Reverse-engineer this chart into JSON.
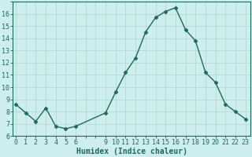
{
  "x": [
    0,
    1,
    2,
    3,
    4,
    5,
    6,
    9,
    10,
    11,
    12,
    13,
    14,
    15,
    16,
    17,
    18,
    19,
    20,
    21,
    22,
    23
  ],
  "y": [
    8.6,
    7.9,
    7.2,
    8.3,
    6.8,
    6.6,
    6.8,
    7.9,
    9.6,
    11.2,
    12.4,
    14.5,
    15.7,
    16.2,
    16.5,
    14.7,
    13.8,
    11.2,
    10.4,
    8.6,
    8.0,
    7.4
  ],
  "line_color": "#1a6b5a",
  "marker": "D",
  "markersize": 2.5,
  "linewidth": 1.0,
  "bg_color": "#ceeeed",
  "grid_color": "#b8d8d6",
  "xlabel": "Humidex (Indice chaleur)",
  "xlabel_fontsize": 7,
  "tick_fontsize": 6,
  "ylim": [
    6,
    17
  ],
  "yticks": [
    6,
    7,
    8,
    9,
    10,
    11,
    12,
    13,
    14,
    15,
    16
  ],
  "xtick_positions": [
    0,
    1,
    2,
    3,
    4,
    5,
    6,
    9,
    10,
    11,
    12,
    13,
    14,
    15,
    16,
    17,
    18,
    19,
    20,
    21,
    22,
    23
  ],
  "xtick_labels": [
    "0",
    "1",
    "2",
    "3",
    "4",
    "5",
    "6",
    "9",
    "10",
    "11",
    "12",
    "13",
    "14",
    "15",
    "16",
    "17",
    "18",
    "19",
    "20",
    "21",
    "22",
    "23"
  ],
  "xlim": [
    -0.3,
    23.5
  ]
}
